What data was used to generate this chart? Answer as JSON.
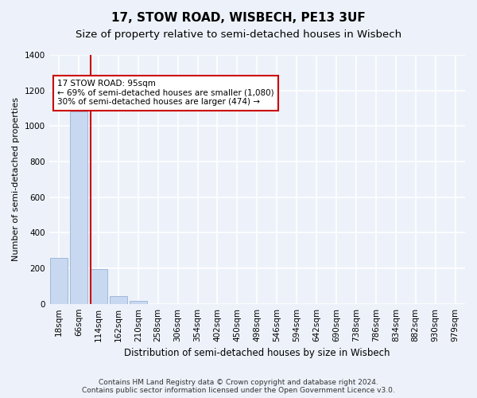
{
  "title": "17, STOW ROAD, WISBECH, PE13 3UF",
  "subtitle": "Size of property relative to semi-detached houses in Wisbech",
  "xlabel": "Distribution of semi-detached houses by size in Wisbech",
  "ylabel": "Number of semi-detached properties",
  "categories": [
    "18sqm",
    "66sqm",
    "114sqm",
    "162sqm",
    "210sqm",
    "258sqm",
    "306sqm",
    "354sqm",
    "402sqm",
    "450sqm",
    "498sqm",
    "546sqm",
    "594sqm",
    "642sqm",
    "690sqm",
    "738sqm",
    "786sqm",
    "834sqm",
    "882sqm",
    "930sqm",
    "979sqm"
  ],
  "values": [
    260,
    1080,
    195,
    45,
    15,
    0,
    0,
    0,
    0,
    0,
    0,
    0,
    0,
    0,
    0,
    0,
    0,
    0,
    0,
    0,
    0
  ],
  "bar_color": "#c8d8f0",
  "bar_edgecolor": "#a0b8d8",
  "vline_color": "#cc0000",
  "annotation_line1": "17 STOW ROAD: 95sqm",
  "annotation_line2": "← 69% of semi-detached houses are smaller (1,080)",
  "annotation_line3": "30% of semi-detached houses are larger (474) →",
  "annotation_box_edgecolor": "#cc0000",
  "annotation_box_facecolor": "white",
  "ylim": [
    0,
    1400
  ],
  "footnote": "Contains HM Land Registry data © Crown copyright and database right 2024.\nContains public sector information licensed under the Open Government Licence v3.0.",
  "background_color": "#edf2fa",
  "plot_background_color": "#edf2fa",
  "grid_color": "#c8d0e0",
  "title_fontsize": 11,
  "subtitle_fontsize": 9.5,
  "ylabel_fontsize": 8,
  "xlabel_fontsize": 8.5,
  "tick_fontsize": 7.5,
  "annotation_fontsize": 7.5,
  "footnote_fontsize": 6.5
}
